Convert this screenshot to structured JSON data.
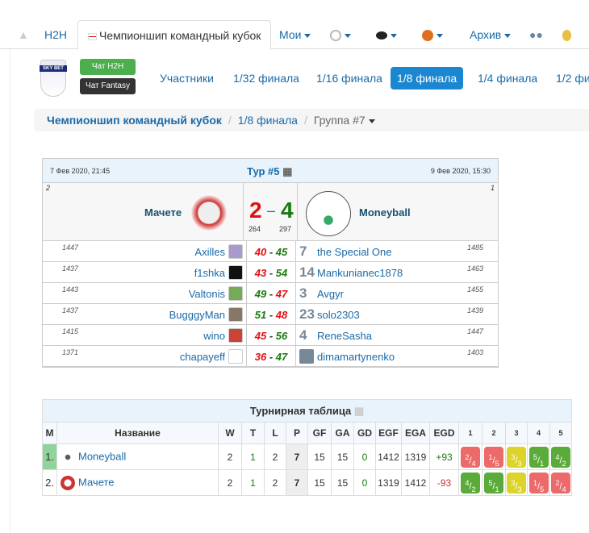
{
  "nav": {
    "home_icon": "home-icon",
    "h2h": "H2H",
    "active_tab": "Чемпионшип командный кубок",
    "flag_icon": "england-flag-icon",
    "mine": "Мои",
    "soccer_icon": "soccer-ball-icon",
    "hockey_icon": "hockey-puck-icon",
    "basketball_icon": "basketball-icon",
    "archive": "Архив",
    "users_icon": "users-icon",
    "medal_icon": "medal-icon"
  },
  "logo_text": "SKY BET",
  "chat_h2h": "Чат H2H",
  "chat_fantasy": "Чат Fantasy",
  "subnav": [
    "Участники",
    "1/32 финала",
    "1/16 финала",
    "1/8 финала",
    "1/4 финала",
    "1/2 фи"
  ],
  "subnav_active": 3,
  "breadcrumb": {
    "root": "Чемпионшип командный кубок",
    "stage": "1/8 финала",
    "group": "Группа #7"
  },
  "match": {
    "start": "7 Фев 2020, 21:45",
    "round": "Тур #5",
    "end": "9 Фев 2020, 15:30",
    "home": {
      "name": "Мачете",
      "seed": "2",
      "score": "2",
      "points": "264"
    },
    "away": {
      "name": "Moneyball",
      "seed": "1",
      "score": "4",
      "points": "297"
    },
    "sep": "–",
    "pairs": [
      {
        "hr": "1447",
        "h": "Axilles",
        "hs": "40",
        "as": "45",
        "a": "the Special One",
        "an": "7",
        "ar": "1485"
      },
      {
        "hr": "1437",
        "h": "f1shka",
        "hs": "43",
        "as": "54",
        "a": "Mankunianec1878",
        "an": "14",
        "ar": "1463"
      },
      {
        "hr": "1443",
        "h": "Valtonis",
        "hs": "49",
        "as": "47",
        "a": "Avgyr",
        "an": "3",
        "ar": "1455"
      },
      {
        "hr": "1437",
        "h": "BugggyMan",
        "hs": "51",
        "as": "48",
        "a": "solo2303",
        "an": "23",
        "ar": "1439"
      },
      {
        "hr": "1415",
        "h": "wino",
        "hs": "45",
        "as": "56",
        "a": "ReneSasha",
        "an": "4",
        "ar": "1447"
      },
      {
        "hr": "1371",
        "h": "chapayeff",
        "hs": "36",
        "as": "47",
        "a": "dimamartynenko",
        "an": "",
        "ar": "1403"
      }
    ]
  },
  "standings": {
    "title": "Турнирная таблица",
    "headers": [
      "М",
      "Название",
      "W",
      "T",
      "L",
      "P",
      "GF",
      "GA",
      "GD",
      "EGF",
      "EGA",
      "EGD",
      "1",
      "2",
      "3",
      "4",
      "5"
    ],
    "rows": [
      {
        "pos": "1.",
        "name": "Moneyball",
        "w": "2",
        "t": "1",
        "l": "2",
        "p": "7",
        "gf": "15",
        "ga": "15",
        "gd": "0",
        "egf": "1412",
        "ega": "1319",
        "egd": "+93",
        "res": [
          [
            "2",
            "4",
            "L"
          ],
          [
            "1",
            "5",
            "L"
          ],
          [
            "3",
            "3",
            "D"
          ],
          [
            "5",
            "1",
            "W"
          ],
          [
            "4",
            "2",
            "W"
          ]
        ]
      },
      {
        "pos": "2.",
        "name": "Мачете",
        "w": "2",
        "t": "1",
        "l": "2",
        "p": "7",
        "gf": "15",
        "ga": "15",
        "gd": "0",
        "egf": "1319",
        "ega": "1412",
        "egd": "-93",
        "res": [
          [
            "4",
            "2",
            "W"
          ],
          [
            "5",
            "1",
            "W"
          ],
          [
            "3",
            "3",
            "D"
          ],
          [
            "1",
            "5",
            "L"
          ],
          [
            "2",
            "4",
            "L"
          ]
        ]
      }
    ]
  },
  "colors": {
    "win": "#5aab3a",
    "loss": "#ec6a6a",
    "draw": "#dcd42a",
    "link": "#1a6aa8",
    "active": "#1a87d0"
  }
}
